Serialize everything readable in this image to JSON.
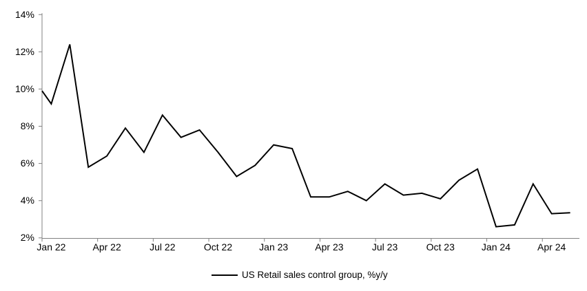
{
  "chart_data": {
    "type": "line",
    "title": "",
    "legend_label": "US Retail sales control group, %y/y",
    "legend_position": "bottom-center",
    "grid": "off",
    "line_color": "#000000",
    "axis_color": "#808080",
    "background": "#ffffff",
    "ylim": [
      2,
      14
    ],
    "y_tick_step": 2,
    "y_tick_labels": [
      "14%",
      "12%",
      "10%",
      "8%",
      "6%",
      "4%",
      "2%"
    ],
    "x_tick_labels": [
      "Jan 22",
      "Apr 22",
      "Jul 22",
      "Oct 22",
      "Jan 23",
      "Apr 23",
      "Jul 23",
      "Oct 23",
      "Jan 24",
      "Apr 24"
    ],
    "categories": [
      "Jan 22",
      "Feb 22",
      "Mar 22",
      "Apr 22",
      "May 22",
      "Jun 22",
      "Jul 22",
      "Aug 22",
      "Sep 22",
      "Oct 22",
      "Nov 22",
      "Dec 22",
      "Jan 23",
      "Feb 23",
      "Mar 23",
      "Apr 23",
      "May 23",
      "Jun 23",
      "Jul 23",
      "Aug 23",
      "Sep 23",
      "Oct 23",
      "Nov 23",
      "Dec 23",
      "Jan 24",
      "Feb 24",
      "Mar 24",
      "Apr 24",
      "May 24"
    ],
    "values": [
      9.2,
      12.4,
      5.8,
      6.4,
      7.9,
      6.6,
      8.6,
      7.4,
      7.8,
      6.6,
      5.3,
      5.9,
      7.0,
      6.8,
      4.2,
      4.2,
      4.5,
      4.0,
      4.9,
      4.3,
      4.4,
      4.1,
      5.1,
      5.7,
      2.6,
      2.7,
      4.9,
      3.3,
      3.35
    ],
    "left_edge_entry_pct": 9.9
  }
}
